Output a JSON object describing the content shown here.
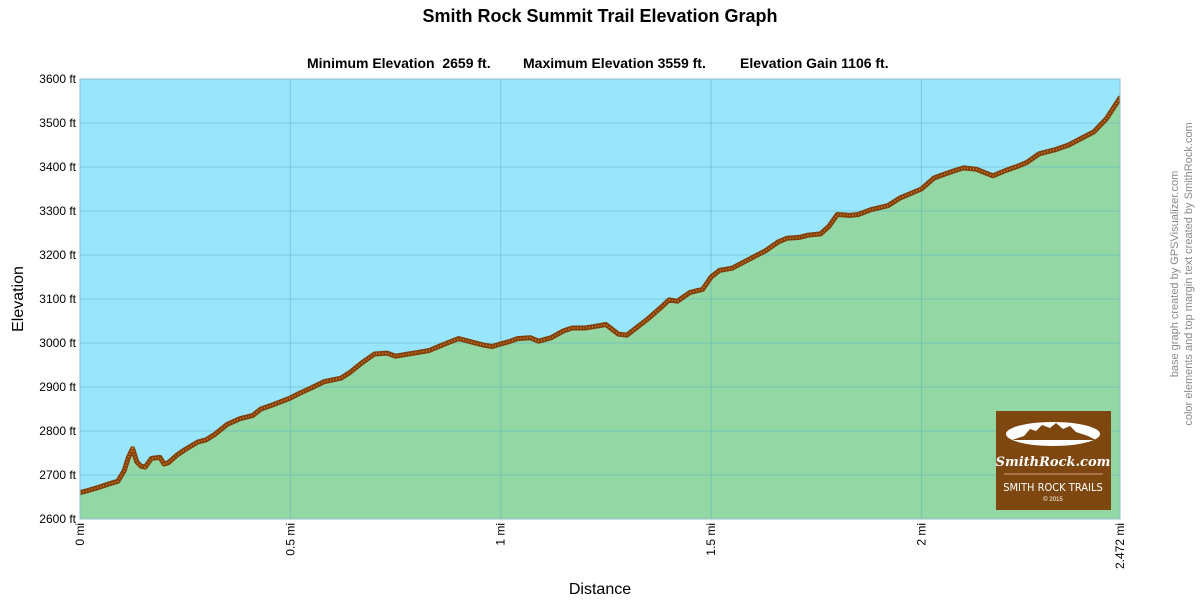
{
  "chart_data": {
    "type": "area",
    "title": "Smith Rock Summit Trail Elevation Graph",
    "subtitle_items": [
      "Minimum Elevation  2659 ft.",
      "Maximum Elevation 3559 ft.",
      "Elevation Gain 1106 ft."
    ],
    "xlabel": "Distance",
    "ylabel": "Elevation",
    "xlim": [
      0,
      2.472
    ],
    "ylim": [
      2600,
      3600
    ],
    "x_ticks": [
      {
        "value": 0,
        "label": "0 mi"
      },
      {
        "value": 0.5,
        "label": "0.5 mi"
      },
      {
        "value": 1,
        "label": "1 mi"
      },
      {
        "value": 1.5,
        "label": "1.5 mi"
      },
      {
        "value": 2,
        "label": "2 mi"
      },
      {
        "value": 2.472,
        "label": "2.472 mi"
      }
    ],
    "y_ticks": [
      {
        "value": 2600,
        "label": "2600 ft"
      },
      {
        "value": 2700,
        "label": "2700 ft"
      },
      {
        "value": 2800,
        "label": "2800 ft"
      },
      {
        "value": 2900,
        "label": "2900 ft"
      },
      {
        "value": 3000,
        "label": "3000 ft"
      },
      {
        "value": 3100,
        "label": "3100 ft"
      },
      {
        "value": 3200,
        "label": "3200 ft"
      },
      {
        "value": 3300,
        "label": "3300 ft"
      },
      {
        "value": 3400,
        "label": "3400 ft"
      },
      {
        "value": 3500,
        "label": "3500 ft"
      },
      {
        "value": 3600,
        "label": "3600 ft"
      }
    ],
    "grid": true,
    "colors": {
      "sky": "#99e5fb",
      "fill": "#93d7a4",
      "line": "#7f3f0a",
      "line_dots": "#d27a28",
      "grid": "#5fb4c4"
    },
    "series": [
      {
        "x": [
          0,
          0.02,
          0.045,
          0.07,
          0.09,
          0.105,
          0.115,
          0.125,
          0.135,
          0.145,
          0.155,
          0.17,
          0.19,
          0.2,
          0.21,
          0.23,
          0.25,
          0.28,
          0.3,
          0.32,
          0.35,
          0.38,
          0.41,
          0.43,
          0.46,
          0.5,
          0.52,
          0.55,
          0.58,
          0.62,
          0.64,
          0.67,
          0.7,
          0.73,
          0.75,
          0.78,
          0.8,
          0.83,
          0.86,
          0.9,
          0.92,
          0.96,
          0.98,
          1.0,
          1.02,
          1.04,
          1.07,
          1.09,
          1.12,
          1.15,
          1.17,
          1.2,
          1.22,
          1.25,
          1.28,
          1.3,
          1.35,
          1.38,
          1.4,
          1.42,
          1.45,
          1.48,
          1.5,
          1.52,
          1.55,
          1.6,
          1.63,
          1.66,
          1.68,
          1.71,
          1.73,
          1.76,
          1.78,
          1.8,
          1.83,
          1.85,
          1.88,
          1.92,
          1.95,
          2.0,
          2.03,
          2.05,
          2.08,
          2.1,
          2.13,
          2.17,
          2.2,
          2.23,
          2.25,
          2.28,
          2.32,
          2.35,
          2.38,
          2.41,
          2.44,
          2.472
        ],
        "y": [
          2660,
          2665,
          2672,
          2680,
          2686,
          2710,
          2740,
          2760,
          2730,
          2720,
          2718,
          2738,
          2740,
          2725,
          2728,
          2745,
          2758,
          2775,
          2780,
          2792,
          2815,
          2828,
          2835,
          2850,
          2860,
          2875,
          2885,
          2898,
          2912,
          2920,
          2932,
          2955,
          2975,
          2977,
          2970,
          2975,
          2978,
          2983,
          2995,
          3010,
          3005,
          2995,
          2992,
          2998,
          3003,
          3010,
          3012,
          3004,
          3012,
          3028,
          3034,
          3034,
          3037,
          3042,
          3020,
          3018,
          3055,
          3080,
          3098,
          3095,
          3115,
          3122,
          3150,
          3165,
          3170,
          3195,
          3210,
          3230,
          3238,
          3240,
          3245,
          3248,
          3265,
          3292,
          3290,
          3292,
          3303,
          3312,
          3330,
          3350,
          3375,
          3382,
          3392,
          3398,
          3395,
          3380,
          3392,
          3402,
          3410,
          3430,
          3440,
          3450,
          3465,
          3480,
          3510,
          3557
        ]
      }
    ]
  },
  "logo": {
    "brand": "SmithRock.com",
    "line1": "SMITH ROCK TRAILS",
    "line2": "© 2015"
  },
  "credits": {
    "line1": "base graph created by GPSVisualizer.com",
    "line2": "color elements and top margin text created by SmithRock.com"
  }
}
